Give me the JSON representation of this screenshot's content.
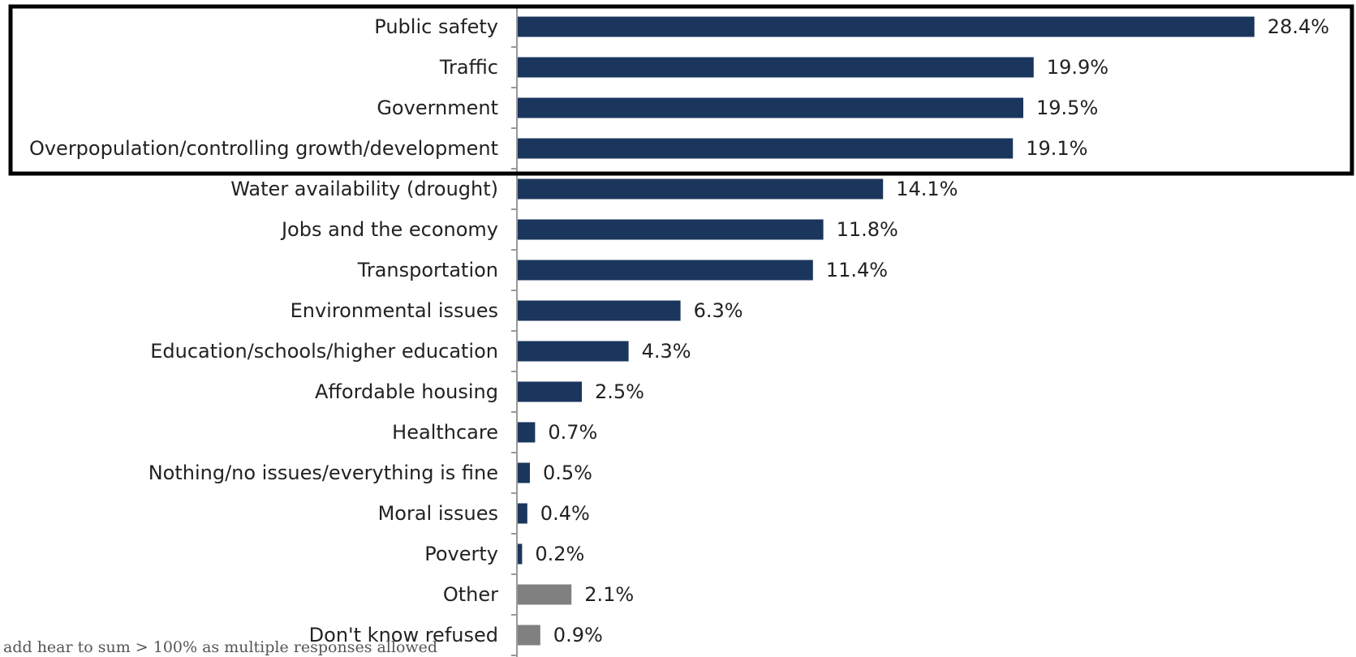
{
  "chart_data": {
    "type": "bar",
    "orientation": "horizontal",
    "categories": [
      "Public safety",
      "Traffic",
      "Government",
      "Overpopulation/controlling growth/development",
      "Water availability (drought)",
      "Jobs and the economy",
      "Transportation",
      "Environmental issues",
      "Education/schools/higher education",
      "Affordable housing",
      "Healthcare",
      "Nothing/no issues/everything is fine",
      "Moral issues",
      "Poverty",
      "Other",
      "Don't know refused"
    ],
    "values": [
      28.4,
      19.9,
      19.5,
      19.1,
      14.1,
      11.8,
      11.4,
      6.3,
      4.3,
      2.5,
      0.7,
      0.5,
      0.4,
      0.2,
      2.1,
      0.9
    ],
    "value_labels": [
      "28.4%",
      "19.9%",
      "19.5%",
      "19.1%",
      "14.1%",
      "11.8%",
      "11.4%",
      "6.3%",
      "4.3%",
      "2.5%",
      "0.7%",
      "0.5%",
      "0.4%",
      "0.2%",
      "2.1%",
      "0.9%"
    ],
    "bar_groups": [
      "issue",
      "issue",
      "issue",
      "issue",
      "issue",
      "issue",
      "issue",
      "issue",
      "issue",
      "issue",
      "issue",
      "issue",
      "issue",
      "issue",
      "other",
      "other"
    ],
    "colors": {
      "issue": "#1b365d",
      "other": "#808080",
      "axis": "#999999",
      "highlight_box": "#000000"
    },
    "highlighted_categories": [
      "Public safety",
      "Traffic",
      "Government",
      "Overpopulation/controlling growth/development"
    ],
    "xlim": [
      0,
      30
    ],
    "grid": false,
    "title": "",
    "xlabel": "",
    "ylabel": ""
  },
  "footnote": "add hear to sum > 100% as multiple responses allowed"
}
